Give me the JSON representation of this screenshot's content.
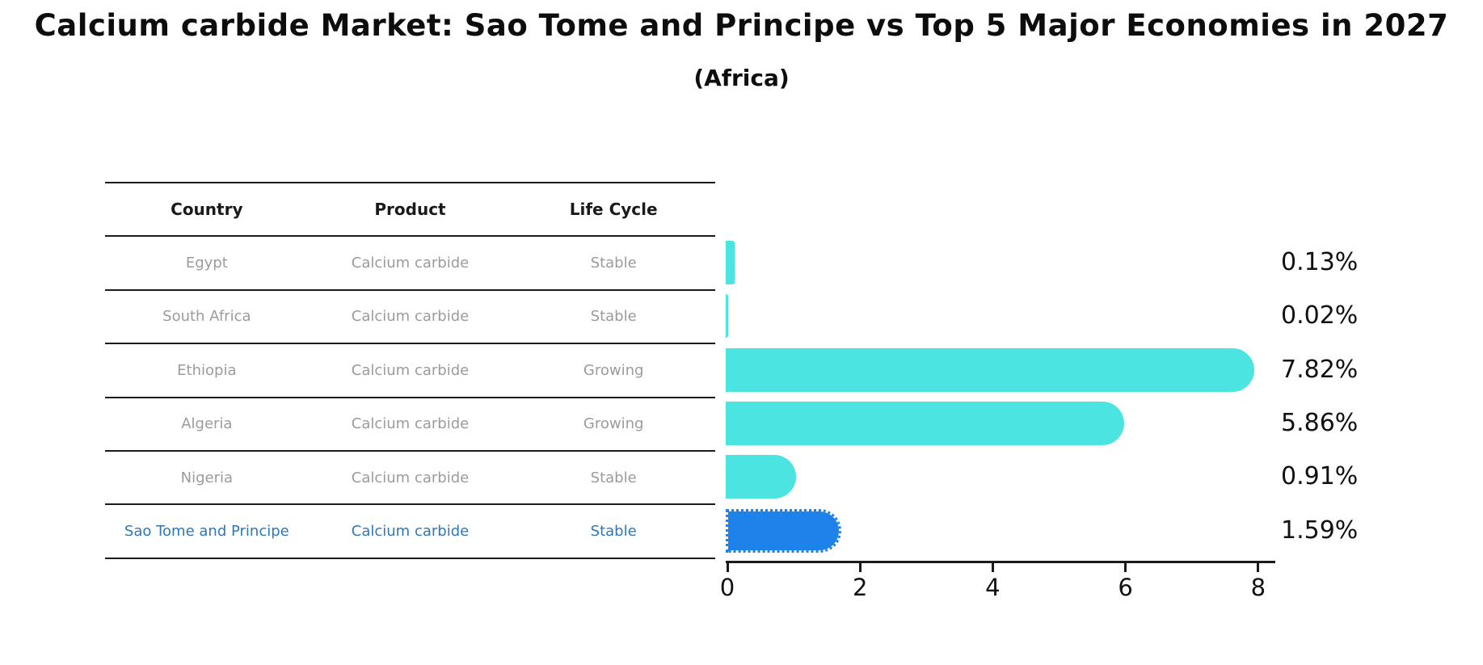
{
  "header": {
    "title": "Calcium carbide Market: Sao Tome and Principe vs Top 5 Major Economies in 2027",
    "subtitle": "(Africa)"
  },
  "table": {
    "columns": [
      "Country",
      "Product",
      "Life Cycle"
    ],
    "highlight_text_color": "#2e78b8",
    "rows": [
      {
        "country": "Egypt",
        "product": "Calcium carbide",
        "life_cycle": "Stable",
        "highlight": false
      },
      {
        "country": "South Africa",
        "product": "Calcium carbide",
        "life_cycle": "Stable",
        "highlight": false
      },
      {
        "country": "Ethiopia",
        "product": "Calcium carbide",
        "life_cycle": "Growing",
        "highlight": false
      },
      {
        "country": "Algeria",
        "product": "Calcium carbide",
        "life_cycle": "Growing",
        "highlight": false
      },
      {
        "country": "Nigeria",
        "product": "Calcium carbide",
        "life_cycle": "Stable",
        "highlight": false
      },
      {
        "country": "Sao Tome and Principe",
        "product": "Calcium carbide",
        "life_cycle": "Stable",
        "highlight": true
      }
    ]
  },
  "chart_data": {
    "type": "bar",
    "orientation": "horizontal",
    "title": "Calcium carbide Market: Sao Tome and Principe vs Top 5 Major Economies in 2027 (Africa)",
    "categories": [
      "Egypt",
      "South Africa",
      "Ethiopia",
      "Algeria",
      "Nigeria",
      "Sao Tome and Principe"
    ],
    "values": [
      0.13,
      0.02,
      7.82,
      5.86,
      0.91,
      1.59
    ],
    "value_labels": [
      "0.13%",
      "0.02%",
      "7.82%",
      "5.86%",
      "0.91%",
      "1.59%"
    ],
    "x_ticks": [
      "0",
      "2",
      "4",
      "6",
      "8"
    ],
    "x_tick_values": [
      0,
      2,
      4,
      6,
      8
    ],
    "xlim": [
      0,
      8.3
    ],
    "xlabel": "",
    "ylabel": "",
    "grid": false,
    "legend": false,
    "bar_color": "#4be4e0",
    "highlight_color": "#1e82eb",
    "highlight_index": 5
  }
}
